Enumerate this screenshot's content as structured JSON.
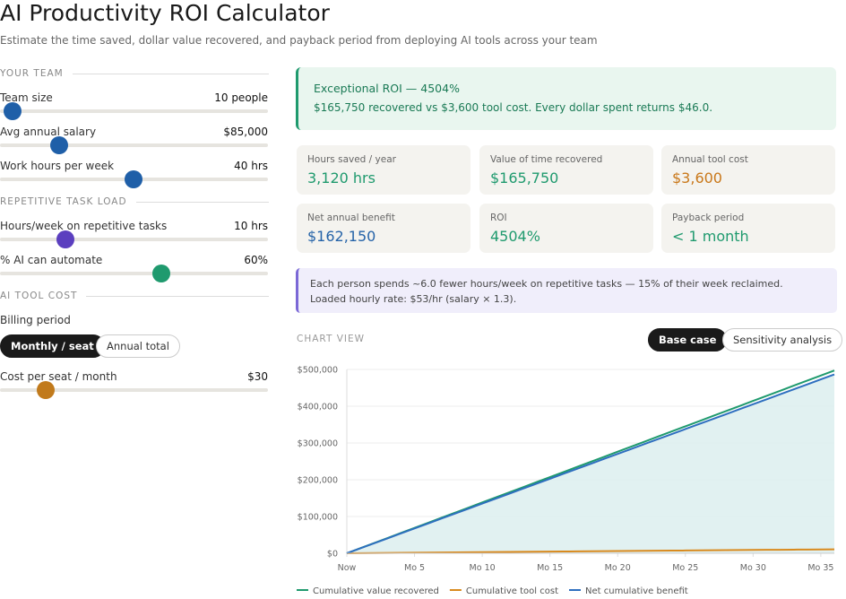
{
  "header": {
    "title": "AI Productivity ROI Calculator",
    "subtitle": "Estimate the time saved, dollar value recovered, and payback period from deploying AI tools across your team"
  },
  "team": {
    "heading": "YOUR TEAM",
    "fields": [
      {
        "label": "Team size",
        "value": "10 people"
      },
      {
        "label": "Avg annual salary",
        "value": "$85,000"
      },
      {
        "label": "Work hours per week",
        "value": "40 hrs"
      }
    ]
  },
  "task_load": {
    "heading": "REPETITIVE TASK LOAD",
    "fields": [
      {
        "label": "Hours/week on repetitive tasks",
        "value": "10 hrs"
      },
      {
        "label": "% AI can automate",
        "value": "60%"
      }
    ]
  },
  "tool_cost": {
    "heading": "AI TOOL COST",
    "billing_label": "Billing period",
    "billing_options": [
      "Monthly / seat",
      "Annual total"
    ],
    "fields": [
      {
        "label": "Cost per seat / month",
        "value": "$30"
      }
    ]
  },
  "banner": {
    "title": "Exceptional ROI — 4504%",
    "text": "$165,750 recovered vs $3,600 tool cost. Every dollar spent returns $46.0."
  },
  "metrics": [
    {
      "label": "Hours saved / year",
      "value": "3,120 hrs",
      "color": "#1f9a6e"
    },
    {
      "label": "Value of time recovered",
      "value": "$165,750",
      "color": "#1f9a6e"
    },
    {
      "label": "Annual tool cost",
      "value": "$3,600",
      "color": "#c9781a"
    },
    {
      "label": "Net annual benefit",
      "value": "$162,150",
      "color": "#2563a8"
    },
    {
      "label": "ROI",
      "value": "4504%",
      "color": "#1f9a6e"
    },
    {
      "label": "Payback period",
      "value": "< 1 month",
      "color": "#1f9a6e"
    }
  ],
  "note": "Each person spends ~6.0 fewer hours/week on repetitive tasks — 15% of their week reclaimed. Loaded hourly rate: $53/hr (salary × 1.3).",
  "chart": {
    "type": "line",
    "title": "CHART VIEW",
    "tabs": [
      "Base case",
      "Sensitivity analysis"
    ],
    "grid": true,
    "x": [
      0,
      1,
      2,
      3,
      4,
      5,
      6,
      7,
      8,
      9,
      10,
      11,
      12,
      13,
      14,
      15,
      16,
      17,
      18,
      19,
      20,
      21,
      22,
      23,
      24,
      25,
      26,
      27,
      28,
      29,
      30,
      31,
      32,
      33,
      34,
      35,
      36
    ],
    "xlim": [
      0,
      36
    ],
    "xticks": [
      {
        "value": 0,
        "label": "Now"
      },
      {
        "value": 5,
        "label": "Mo 5"
      },
      {
        "value": 10,
        "label": "Mo 10"
      },
      {
        "value": 15,
        "label": "Mo 15"
      },
      {
        "value": 20,
        "label": "Mo 20"
      },
      {
        "value": 25,
        "label": "Mo 25"
      },
      {
        "value": 30,
        "label": "Mo 30"
      },
      {
        "value": 35,
        "label": "Mo 35"
      }
    ],
    "ylim": [
      0,
      500000
    ],
    "yticks": [
      {
        "value": 0,
        "label": "$0"
      },
      {
        "value": 100000,
        "label": "$100,000"
      },
      {
        "value": 200000,
        "label": "$200,000"
      },
      {
        "value": 300000,
        "label": "$300,000"
      },
      {
        "value": 400000,
        "label": "$400,000"
      },
      {
        "value": 500000,
        "label": "$500,000"
      }
    ],
    "area_series": 2,
    "area_color": "#dcefef",
    "series": [
      {
        "name": "Cumulative value recovered",
        "color": "#1f9a6e",
        "values": [
          0,
          13812.5,
          27625,
          41437.5,
          55250,
          69062.5,
          82875,
          96687.5,
          110500,
          124312.5,
          138125,
          151937.5,
          165750,
          179562.5,
          193375,
          207187.5,
          221000,
          234812.5,
          248625,
          262437.5,
          276250,
          290062.5,
          303875,
          317687.5,
          331500,
          345312.5,
          359125,
          372937.5,
          386750,
          400562.5,
          414375,
          428187.5,
          442000,
          455812.5,
          469625,
          483437.5,
          497250
        ]
      },
      {
        "name": "Cumulative tool cost",
        "color": "#d98a1e",
        "values": [
          0,
          300,
          600,
          900,
          1200,
          1500,
          1800,
          2100,
          2400,
          2700,
          3000,
          3300,
          3600,
          3900,
          4200,
          4500,
          4800,
          5100,
          5400,
          5700,
          6000,
          6300,
          6600,
          6900,
          7200,
          7500,
          7800,
          8100,
          8400,
          8700,
          9000,
          9300,
          9600,
          9900,
          10200,
          10500,
          10800
        ]
      },
      {
        "name": "Net cumulative benefit",
        "color": "#2e6fbf",
        "values": [
          0,
          13512.5,
          27025,
          40537.5,
          54050,
          67562.5,
          81075,
          94587.5,
          108100,
          121612.5,
          135125,
          148637.5,
          162150,
          175662.5,
          189175,
          202687.5,
          216200,
          229712.5,
          243225,
          256737.5,
          270250,
          283762.5,
          297275,
          310787.5,
          324300,
          337812.5,
          351325,
          364837.5,
          378350,
          391862.5,
          405375,
          418887.5,
          432400,
          445912.5,
          459425,
          472937.5,
          486450
        ]
      }
    ]
  }
}
